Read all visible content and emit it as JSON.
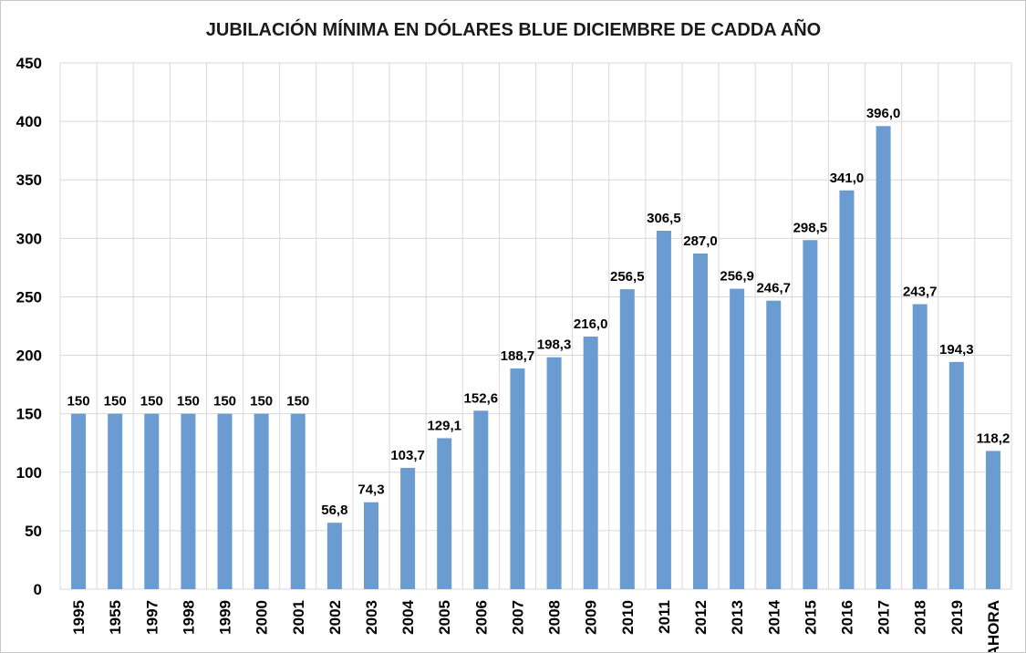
{
  "chart_data": {
    "type": "bar",
    "title": "JUBILACIÓN MÍNIMA EN DÓLARES BLUE DICIEMBRE DE CADDA AÑO",
    "xlabel": "",
    "ylabel": "",
    "ylim": [
      0,
      450
    ],
    "yticks": [
      0,
      50,
      100,
      150,
      200,
      250,
      300,
      350,
      400,
      450
    ],
    "grid": true,
    "legend": "none",
    "bar_color": "#6a9bd1",
    "categories": [
      "1995",
      "1955",
      "1997",
      "1998",
      "1999",
      "2000",
      "2001",
      "2002",
      "2003",
      "2004",
      "2005",
      "2006",
      "2007",
      "2008",
      "2009",
      "2010",
      "2011",
      "2012",
      "2013",
      "2014",
      "2015",
      "2016",
      "2017",
      "2018",
      "2019",
      "AHORA"
    ],
    "values": [
      150,
      150,
      150,
      150,
      150,
      150,
      150,
      56.8,
      74.3,
      103.7,
      129.1,
      152.6,
      188.7,
      198.3,
      216.0,
      256.5,
      306.5,
      287.0,
      256.9,
      246.7,
      298.5,
      341.0,
      396.0,
      243.7,
      194.3,
      118.2
    ],
    "data_labels": [
      "150",
      "150",
      "150",
      "150",
      "150",
      "150",
      "150",
      "56,8",
      "74,3",
      "103,7",
      "129,1",
      "152,6",
      "188,7",
      "198,3",
      "216,0",
      "256,5",
      "306,5",
      "287,0",
      "256,9",
      "246,7",
      "298,5",
      "341,0",
      "396,0",
      "243,7",
      "194,3",
      "118,2"
    ]
  }
}
